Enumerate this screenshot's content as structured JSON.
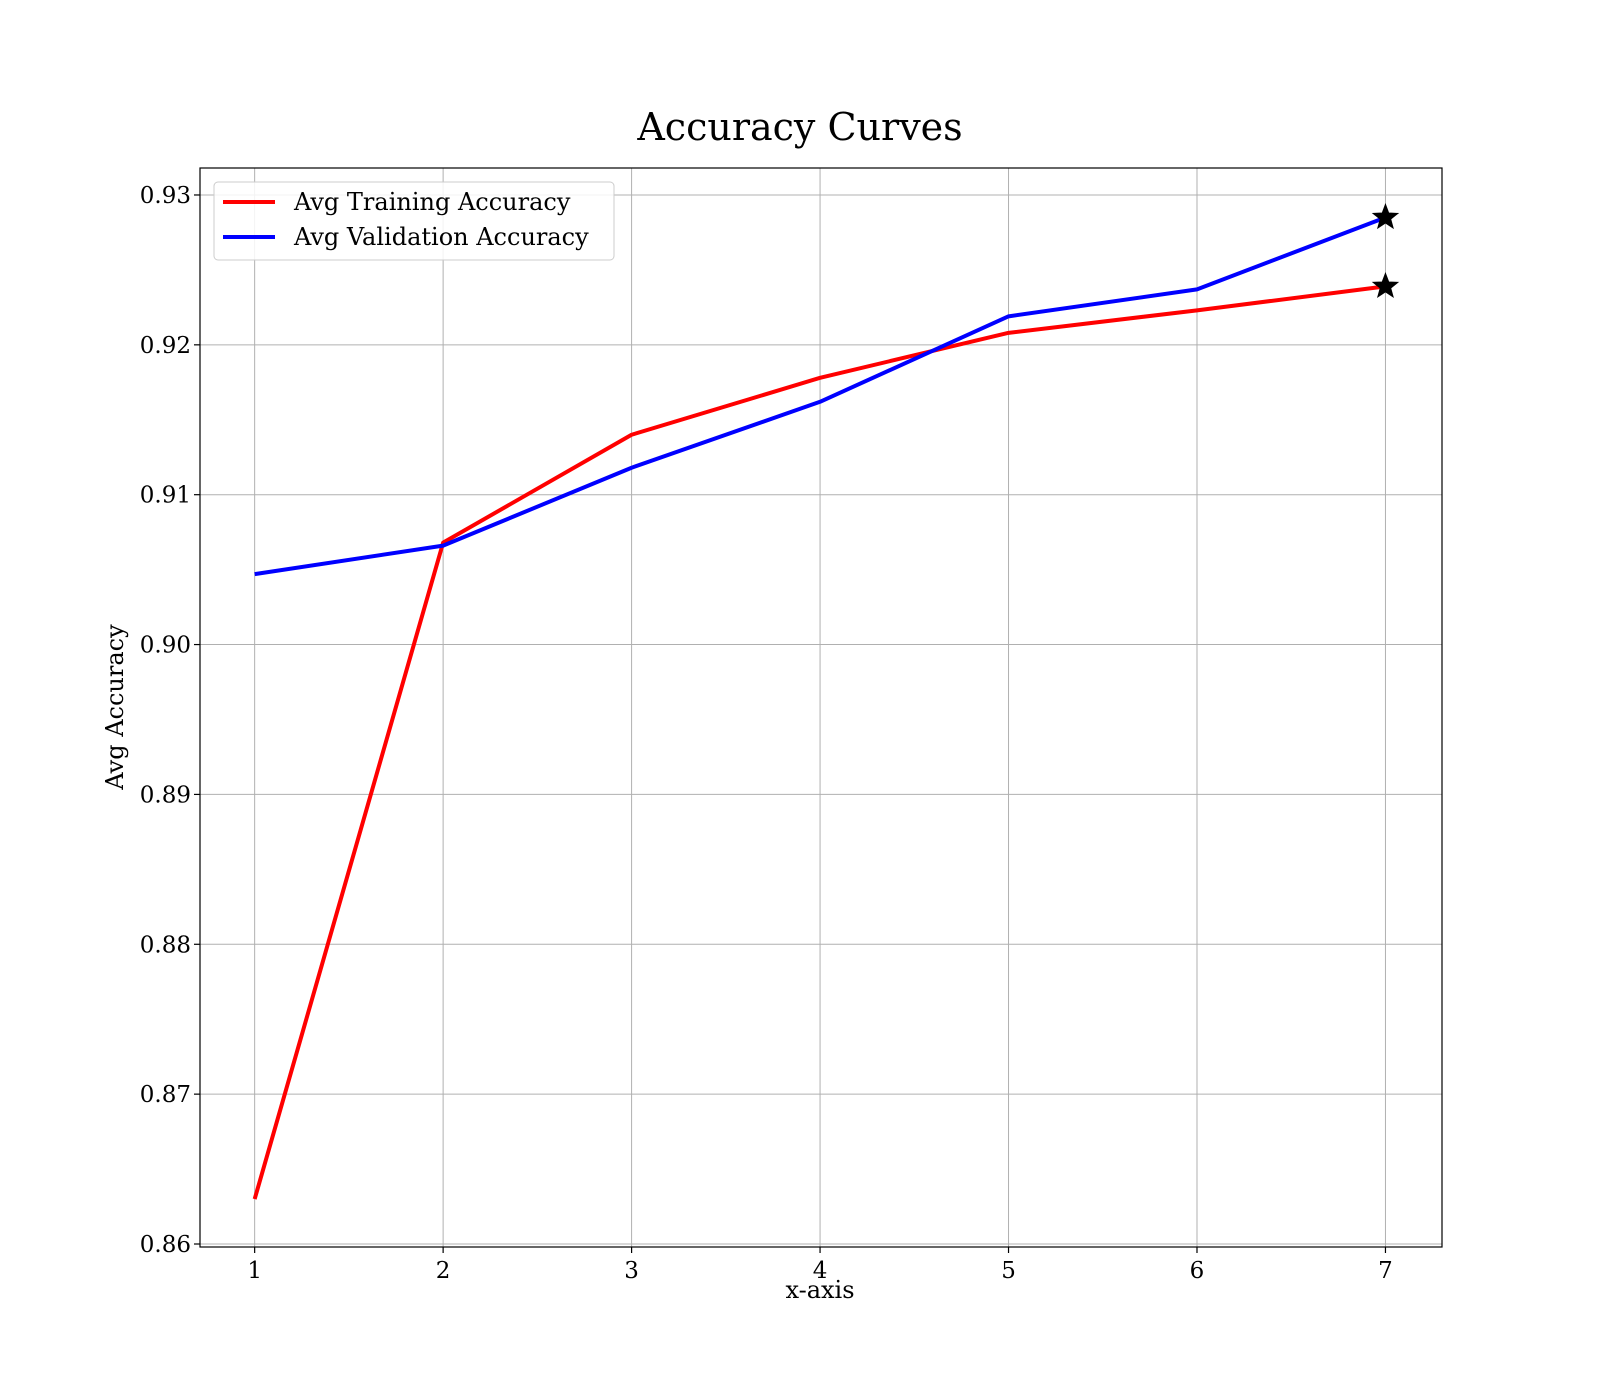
{
  "chart_data": {
    "type": "line",
    "title": "Accuracy Curves",
    "xlabel": "x-axis",
    "ylabel": "Avg Accuracy",
    "x": [
      1,
      2,
      3,
      4,
      5,
      6,
      7
    ],
    "xticks": [
      "1",
      "2",
      "3",
      "4",
      "5",
      "6",
      "7"
    ],
    "xlim": [
      0.71,
      7.3
    ],
    "yticks": [
      "0.86",
      "0.87",
      "0.88",
      "0.89",
      "0.90",
      "0.91",
      "0.92",
      "0.93"
    ],
    "ytick_values": [
      0.86,
      0.87,
      0.88,
      0.89,
      0.9,
      0.91,
      0.92,
      0.93
    ],
    "ylim": [
      0.8598,
      0.9318
    ],
    "grid": true,
    "legend_position": "top-left",
    "series": [
      {
        "name": "Avg Training Accuracy",
        "color": "#ff0000",
        "values": [
          0.863,
          0.9068,
          0.914,
          0.9178,
          0.9208,
          0.9223,
          0.9239
        ],
        "marker_last": "star"
      },
      {
        "name": "Avg Validation Accuracy",
        "color": "#0000ff",
        "values": [
          0.9047,
          0.9066,
          0.9118,
          0.9162,
          0.9219,
          0.9237,
          0.9285
        ],
        "marker_last": "star"
      }
    ]
  }
}
